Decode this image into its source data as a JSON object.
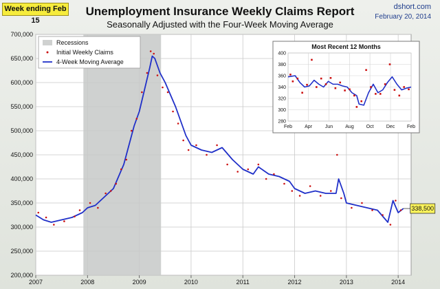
{
  "header": {
    "badge": "Week ending Feb 15",
    "title": "Unemployment Insurance Weekly Claims Report",
    "subtitle": "Seasonally Adjusted with the Four-Week Moving Average",
    "source": "dshort.com",
    "date": "February 20, 2014"
  },
  "colors": {
    "recession": "#cfd1d0",
    "points": "#cc1111",
    "line": "#1f2fc8",
    "callout": "#fbf35a"
  },
  "chart_data": [
    {
      "type": "line",
      "title": "Unemployment Insurance Weekly Claims Report",
      "x_range": [
        2007.0,
        2014.25
      ],
      "ylim": [
        200000,
        700000
      ],
      "yticks": [
        200000,
        250000,
        300000,
        350000,
        400000,
        450000,
        500000,
        550000,
        600000,
        650000,
        700000
      ],
      "ytick_labels": [
        "200,000",
        "250,000",
        "300,000",
        "350,000",
        "400,000",
        "450,000",
        "500,000",
        "550,000",
        "600,000",
        "650,000",
        "700,000"
      ],
      "xticks": [
        2007,
        2008,
        2009,
        2010,
        2011,
        2012,
        2013,
        2014
      ],
      "xtick_labels": [
        "2007",
        "2008",
        "2009",
        "2010",
        "2011",
        "2012",
        "2013",
        "2014"
      ],
      "grid": true,
      "recessions": [
        [
          2007.92,
          2009.42
        ]
      ],
      "legend": {
        "location": "top-left",
        "entries": [
          "Recessions",
          "Initial Weekly Claims",
          "4-Week Moving Average"
        ]
      },
      "series": [
        {
          "name": "4-Week Moving Average",
          "x": [
            2007.0,
            2007.15,
            2007.3,
            2007.5,
            2007.7,
            2007.9,
            2008.0,
            2008.15,
            2008.3,
            2008.5,
            2008.6,
            2008.7,
            2008.8,
            2008.9,
            2009.0,
            2009.1,
            2009.2,
            2009.25,
            2009.3,
            2009.4,
            2009.5,
            2009.6,
            2009.7,
            2009.8,
            2009.9,
            2010.0,
            2010.2,
            2010.4,
            2010.6,
            2010.8,
            2011.0,
            2011.2,
            2011.3,
            2011.5,
            2011.7,
            2011.9,
            2012.0,
            2012.2,
            2012.4,
            2012.6,
            2012.8,
            2012.85,
            2012.95,
            2013.0,
            2013.2,
            2013.4,
            2013.6,
            2013.8,
            2013.9,
            2014.0,
            2014.1
          ],
          "y": [
            325000,
            315000,
            310000,
            315000,
            320000,
            330000,
            340000,
            345000,
            360000,
            380000,
            405000,
            430000,
            470000,
            510000,
            540000,
            585000,
            630000,
            655000,
            650000,
            620000,
            600000,
            575000,
            550000,
            520000,
            490000,
            470000,
            460000,
            455000,
            465000,
            440000,
            420000,
            410000,
            425000,
            410000,
            405000,
            395000,
            380000,
            370000,
            375000,
            370000,
            370000,
            400000,
            370000,
            350000,
            345000,
            340000,
            335000,
            310000,
            355000,
            330000,
            338500
          ]
        },
        {
          "name": "Initial Weekly Claims",
          "x": [
            2007.05,
            2007.2,
            2007.35,
            2007.55,
            2007.75,
            2007.85,
            2008.05,
            2008.2,
            2008.35,
            2008.45,
            2008.55,
            2008.65,
            2008.75,
            2008.85,
            2008.95,
            2009.05,
            2009.15,
            2009.22,
            2009.28,
            2009.35,
            2009.45,
            2009.55,
            2009.65,
            2009.75,
            2009.85,
            2009.95,
            2010.1,
            2010.3,
            2010.5,
            2010.7,
            2010.9,
            2011.1,
            2011.3,
            2011.45,
            2011.6,
            2011.8,
            2011.95,
            2012.1,
            2012.3,
            2012.5,
            2012.7,
            2012.82,
            2012.9,
            2013.1,
            2013.3,
            2013.5,
            2013.7,
            2013.85,
            2013.95,
            2014.05
          ],
          "y": [
            330000,
            320000,
            305000,
            312000,
            322000,
            335000,
            350000,
            340000,
            370000,
            375000,
            390000,
            420000,
            440000,
            500000,
            525000,
            580000,
            620000,
            665000,
            660000,
            615000,
            590000,
            580000,
            540000,
            515000,
            480000,
            460000,
            470000,
            450000,
            470000,
            430000,
            415000,
            420000,
            430000,
            400000,
            410000,
            390000,
            375000,
            365000,
            385000,
            365000,
            375000,
            450000,
            360000,
            340000,
            350000,
            335000,
            325000,
            305000,
            355000,
            335000
          ]
        }
      ],
      "annotation": "338,500"
    },
    {
      "type": "line",
      "title": "Most Recent 12 Months",
      "x_range": [
        0,
        52
      ],
      "ylim": [
        280,
        400
      ],
      "yticks": [
        280,
        300,
        320,
        340,
        360,
        380,
        400
      ],
      "ytick_labels": [
        "280",
        "300",
        "320",
        "340",
        "360",
        "380",
        "400"
      ],
      "xticks": [
        0,
        8.6,
        17.3,
        26,
        34.6,
        43.3,
        52
      ],
      "xtick_labels": [
        "Feb",
        "Apr",
        "Jun",
        "Aug",
        "Oct",
        "Dec",
        "Feb"
      ],
      "grid": true,
      "series": [
        {
          "name": "4-Week Moving Average",
          "x": [
            0,
            3,
            5,
            7,
            9,
            11,
            13,
            15,
            17,
            19,
            21,
            23,
            25,
            27,
            29,
            30,
            32,
            34,
            36,
            38,
            40,
            42,
            44,
            46,
            48,
            50,
            52
          ],
          "y": [
            358,
            360,
            348,
            340,
            342,
            352,
            345,
            340,
            350,
            345,
            345,
            342,
            340,
            330,
            325,
            310,
            308,
            330,
            345,
            330,
            335,
            348,
            358,
            345,
            335,
            338,
            340
          ]
        },
        {
          "name": "Initial Weekly Claims",
          "x": [
            1,
            2,
            4,
            6,
            8,
            10,
            12,
            14,
            16,
            18,
            20,
            22,
            24,
            26,
            28,
            29,
            31,
            33,
            35,
            37,
            39,
            41,
            43,
            45,
            47,
            49,
            51
          ],
          "y": [
            362,
            350,
            355,
            330,
            344,
            388,
            340,
            355,
            345,
            356,
            338,
            348,
            334,
            336,
            325,
            305,
            315,
            370,
            340,
            328,
            328,
            345,
            380,
            335,
            325,
            340,
            336
          ]
        }
      ]
    }
  ]
}
